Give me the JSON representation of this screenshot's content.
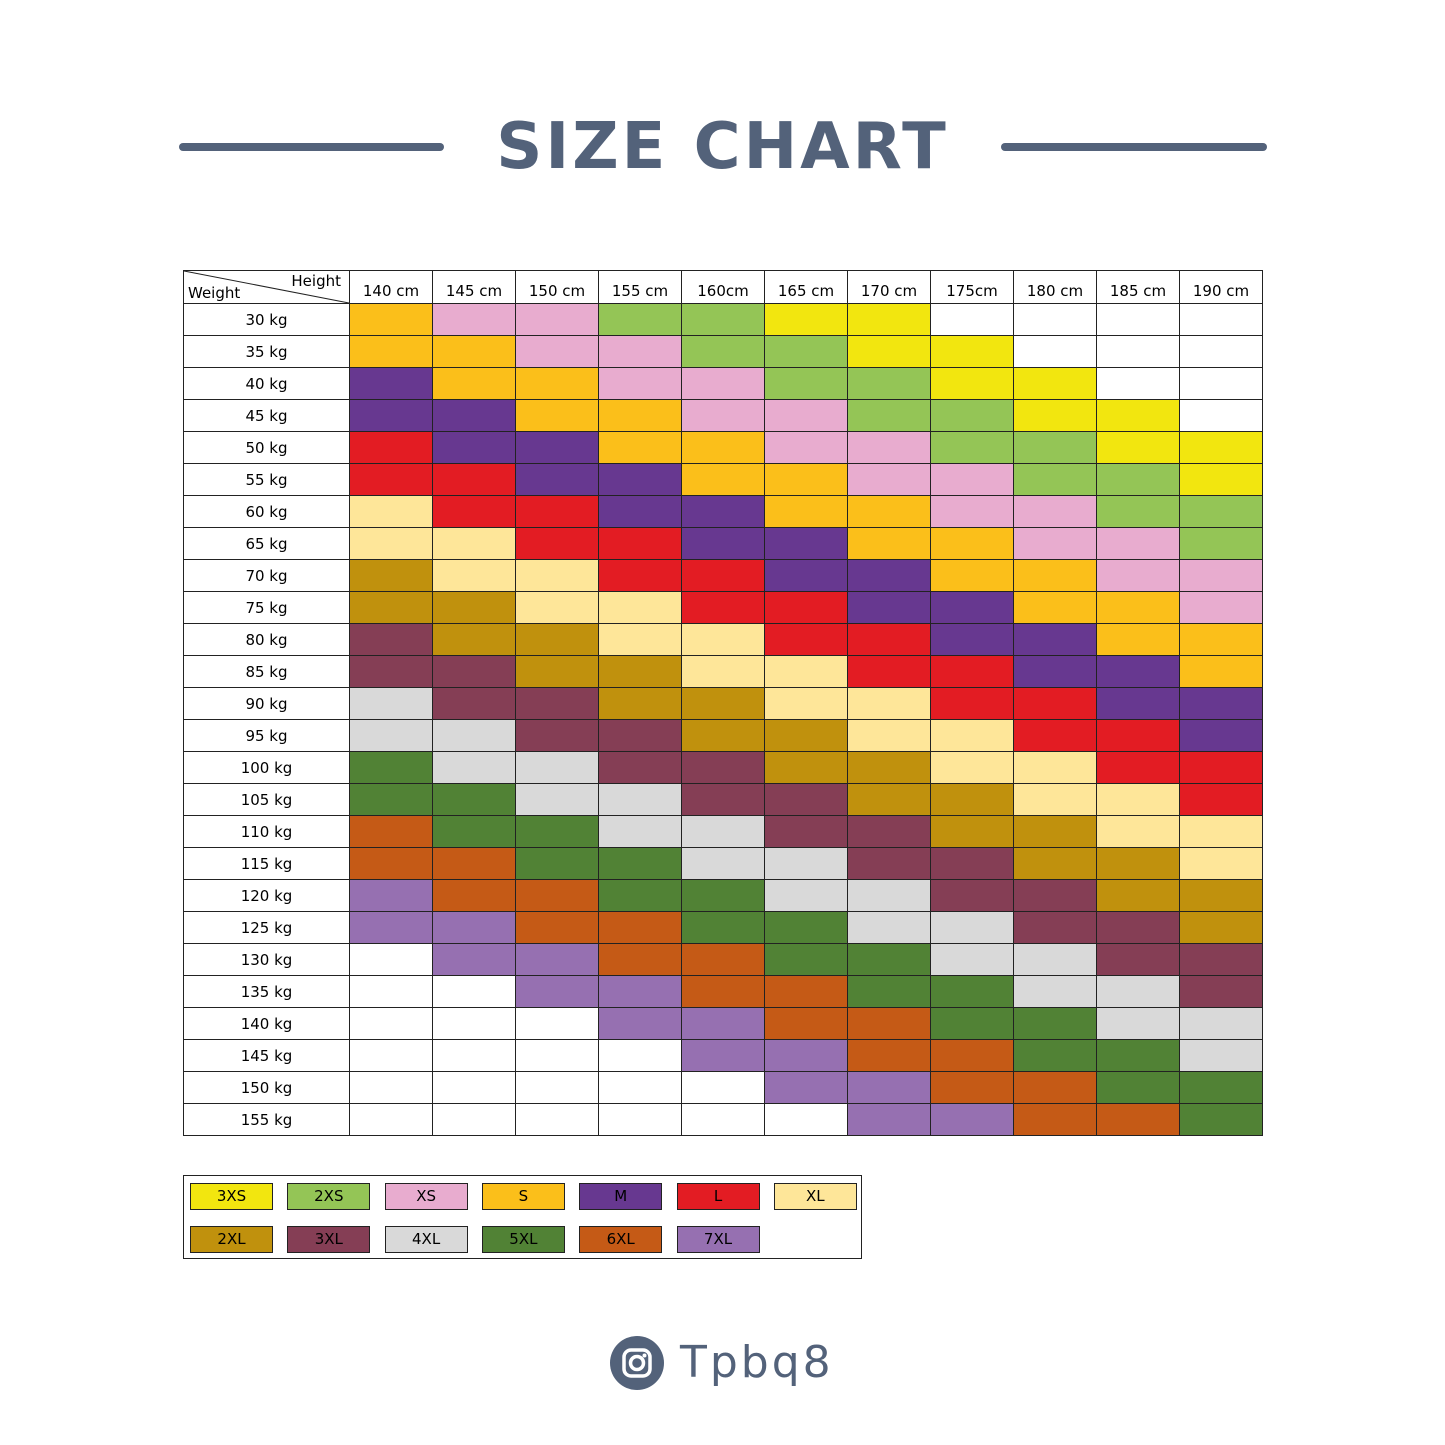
{
  "title": "SIZE CHART",
  "corner": {
    "height_label": "Height",
    "weight_label": "Weight"
  },
  "chart_data": {
    "type": "table",
    "title": "SIZE CHART",
    "columns": [
      "140 cm",
      "145 cm",
      "150 cm",
      "155 cm",
      "160cm",
      "165 cm",
      "170 cm",
      "175cm",
      "180 cm",
      "185 cm",
      "190 cm"
    ],
    "rows": [
      {
        "weight": "30 kg",
        "sizes": [
          "S",
          "XS",
          "XS",
          "2XS",
          "2XS",
          "3XS",
          "3XS",
          "",
          "",
          "",
          ""
        ]
      },
      {
        "weight": "35 kg",
        "sizes": [
          "S",
          "S",
          "XS",
          "XS",
          "2XS",
          "2XS",
          "3XS",
          "3XS",
          "",
          "",
          ""
        ]
      },
      {
        "weight": "40 kg",
        "sizes": [
          "M",
          "S",
          "S",
          "XS",
          "XS",
          "2XS",
          "2XS",
          "3XS",
          "3XS",
          "",
          ""
        ]
      },
      {
        "weight": "45 kg",
        "sizes": [
          "M",
          "M",
          "S",
          "S",
          "XS",
          "XS",
          "2XS",
          "2XS",
          "3XS",
          "3XS",
          ""
        ]
      },
      {
        "weight": "50 kg",
        "sizes": [
          "L",
          "M",
          "M",
          "S",
          "S",
          "XS",
          "XS",
          "2XS",
          "2XS",
          "3XS",
          "3XS"
        ]
      },
      {
        "weight": "55 kg",
        "sizes": [
          "L",
          "L",
          "M",
          "M",
          "S",
          "S",
          "XS",
          "XS",
          "2XS",
          "2XS",
          "3XS"
        ]
      },
      {
        "weight": "60 kg",
        "sizes": [
          "XL",
          "L",
          "L",
          "M",
          "M",
          "S",
          "S",
          "XS",
          "XS",
          "2XS",
          "2XS"
        ]
      },
      {
        "weight": "65 kg",
        "sizes": [
          "XL",
          "XL",
          "L",
          "L",
          "M",
          "M",
          "S",
          "S",
          "XS",
          "XS",
          "2XS"
        ]
      },
      {
        "weight": "70 kg",
        "sizes": [
          "2XL",
          "XL",
          "XL",
          "L",
          "L",
          "M",
          "M",
          "S",
          "S",
          "XS",
          "XS"
        ]
      },
      {
        "weight": "75 kg",
        "sizes": [
          "2XL",
          "2XL",
          "XL",
          "XL",
          "L",
          "L",
          "M",
          "M",
          "S",
          "S",
          "XS"
        ]
      },
      {
        "weight": "80 kg",
        "sizes": [
          "3XL",
          "2XL",
          "2XL",
          "XL",
          "XL",
          "L",
          "L",
          "M",
          "M",
          "S",
          "S"
        ]
      },
      {
        "weight": "85 kg",
        "sizes": [
          "3XL",
          "3XL",
          "2XL",
          "2XL",
          "XL",
          "XL",
          "L",
          "L",
          "M",
          "M",
          "S"
        ]
      },
      {
        "weight": "90 kg",
        "sizes": [
          "4XL",
          "3XL",
          "3XL",
          "2XL",
          "2XL",
          "XL",
          "XL",
          "L",
          "L",
          "M",
          "M"
        ]
      },
      {
        "weight": "95 kg",
        "sizes": [
          "4XL",
          "4XL",
          "3XL",
          "3XL",
          "2XL",
          "2XL",
          "XL",
          "XL",
          "L",
          "L",
          "M"
        ]
      },
      {
        "weight": "100 kg",
        "sizes": [
          "5XL",
          "4XL",
          "4XL",
          "3XL",
          "3XL",
          "2XL",
          "2XL",
          "XL",
          "XL",
          "L",
          "L"
        ]
      },
      {
        "weight": "105 kg",
        "sizes": [
          "5XL",
          "5XL",
          "4XL",
          "4XL",
          "3XL",
          "3XL",
          "2XL",
          "2XL",
          "XL",
          "XL",
          "L"
        ]
      },
      {
        "weight": "110 kg",
        "sizes": [
          "6XL",
          "5XL",
          "5XL",
          "4XL",
          "4XL",
          "3XL",
          "3XL",
          "2XL",
          "2XL",
          "XL",
          "XL"
        ]
      },
      {
        "weight": "115 kg",
        "sizes": [
          "6XL",
          "6XL",
          "5XL",
          "5XL",
          "4XL",
          "4XL",
          "3XL",
          "3XL",
          "2XL",
          "2XL",
          "XL"
        ]
      },
      {
        "weight": "120 kg",
        "sizes": [
          "7XL",
          "6XL",
          "6XL",
          "5XL",
          "5XL",
          "4XL",
          "4XL",
          "3XL",
          "3XL",
          "2XL",
          "2XL"
        ]
      },
      {
        "weight": "125 kg",
        "sizes": [
          "7XL",
          "7XL",
          "6XL",
          "6XL",
          "5XL",
          "5XL",
          "4XL",
          "4XL",
          "3XL",
          "3XL",
          "2XL"
        ]
      },
      {
        "weight": "130 kg",
        "sizes": [
          "",
          "7XL",
          "7XL",
          "6XL",
          "6XL",
          "5XL",
          "5XL",
          "4XL",
          "4XL",
          "3XL",
          "3XL"
        ]
      },
      {
        "weight": "135 kg",
        "sizes": [
          "",
          "",
          "7XL",
          "7XL",
          "6XL",
          "6XL",
          "5XL",
          "5XL",
          "4XL",
          "4XL",
          "3XL"
        ]
      },
      {
        "weight": "140 kg",
        "sizes": [
          "",
          "",
          "",
          "7XL",
          "7XL",
          "6XL",
          "6XL",
          "5XL",
          "5XL",
          "4XL",
          "4XL"
        ]
      },
      {
        "weight": "145 kg",
        "sizes": [
          "",
          "",
          "",
          "",
          "7XL",
          "7XL",
          "6XL",
          "6XL",
          "5XL",
          "5XL",
          "4XL"
        ]
      },
      {
        "weight": "150 kg",
        "sizes": [
          "",
          "",
          "",
          "",
          "",
          "7XL",
          "7XL",
          "6XL",
          "6XL",
          "5XL",
          "5XL"
        ]
      },
      {
        "weight": "155 kg",
        "sizes": [
          "",
          "",
          "",
          "",
          "",
          "",
          "7XL",
          "7XL",
          "6XL",
          "6XL",
          "5XL"
        ]
      }
    ]
  },
  "legend": [
    {
      "label": "3XS",
      "color": "#f2e60f"
    },
    {
      "label": "2XS",
      "color": "#94c556"
    },
    {
      "label": "XS",
      "color": "#e8accf"
    },
    {
      "label": "S",
      "color": "#fbbf1a"
    },
    {
      "label": "M",
      "color": "#673890"
    },
    {
      "label": "L",
      "color": "#e31c23"
    },
    {
      "label": "XL",
      "color": "#fee699"
    },
    {
      "label": "2XL",
      "color": "#c0910d"
    },
    {
      "label": "3XL",
      "color": "#853e55"
    },
    {
      "label": "4XL",
      "color": "#d9d9d9"
    },
    {
      "label": "5XL",
      "color": "#518235"
    },
    {
      "label": "6XL",
      "color": "#c55a16"
    },
    {
      "label": "7XL",
      "color": "#9670b1"
    }
  ],
  "colors": {
    "title": "#53627a",
    "empty": "#ffffff"
  },
  "footer": {
    "icon": "instagram-icon",
    "handle": "Tpbq8"
  }
}
